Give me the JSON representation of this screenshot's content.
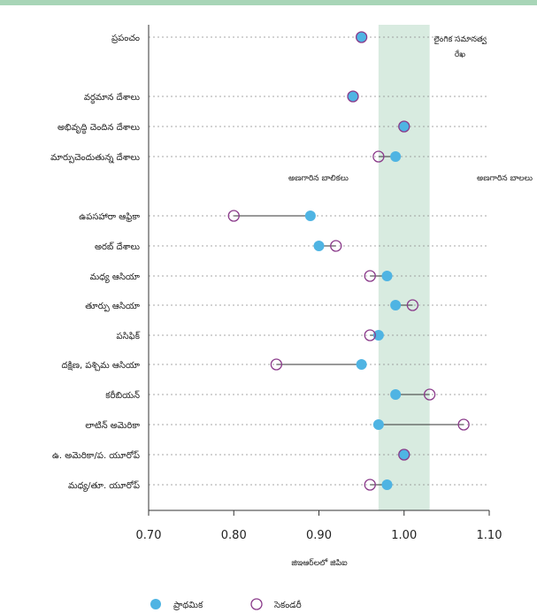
{
  "chart_data": {
    "type": "scatter",
    "title": "",
    "xlabel": "జిఇఆర్‌లలో జిపిఐ",
    "ylabel": "",
    "xlim": [
      0.7,
      1.1
    ],
    "xticks": [
      "0.70",
      "0.80",
      "0.90",
      "1.00",
      "1.10"
    ],
    "parity_band": [
      0.97,
      1.03
    ],
    "parity_label": [
      "లైంగిక సమానత్వ",
      "రేఖ"
    ],
    "annotations": {
      "left": "అణగారిన బాలికలు",
      "right": "అణగారిన బాలలు"
    },
    "colors": {
      "primary": "#4fb4e3",
      "secondary": "#8a3a8a",
      "band": "#d8ebe0",
      "topbar": "#a8d5b7"
    },
    "categories": [
      "ప్రపంచం",
      "వర్ధమాన దేశాలు",
      "అభివృద్ధి చెందిన దేశాలు",
      "మార్పుచెందుతున్న దేశాలు",
      "ఉపసహారా ఆఫ్రికా",
      "అరబ్ దేశాలు",
      "మధ్య ఆసియా",
      "తూర్పు ఆసియా",
      "పసిఫిక్",
      "దక్షిణ, పశ్చిమ ఆసియా",
      "కరీబియన్",
      "లాటిన్ అమెరికా",
      "ఉ. అమెరికా/ప. యూరోప్",
      "మధ్య/తూ. యూరోప్"
    ],
    "series": [
      {
        "name": "ప్రాథమిక",
        "values": [
          0.95,
          0.94,
          1.0,
          0.99,
          0.89,
          0.9,
          0.98,
          0.99,
          0.97,
          0.95,
          0.99,
          0.97,
          1.0,
          0.98
        ]
      },
      {
        "name": "సెకండరీ",
        "values": [
          0.95,
          0.94,
          1.0,
          0.97,
          0.8,
          0.92,
          0.96,
          1.01,
          0.96,
          0.85,
          1.03,
          1.07,
          1.0,
          0.96
        ]
      }
    ]
  }
}
